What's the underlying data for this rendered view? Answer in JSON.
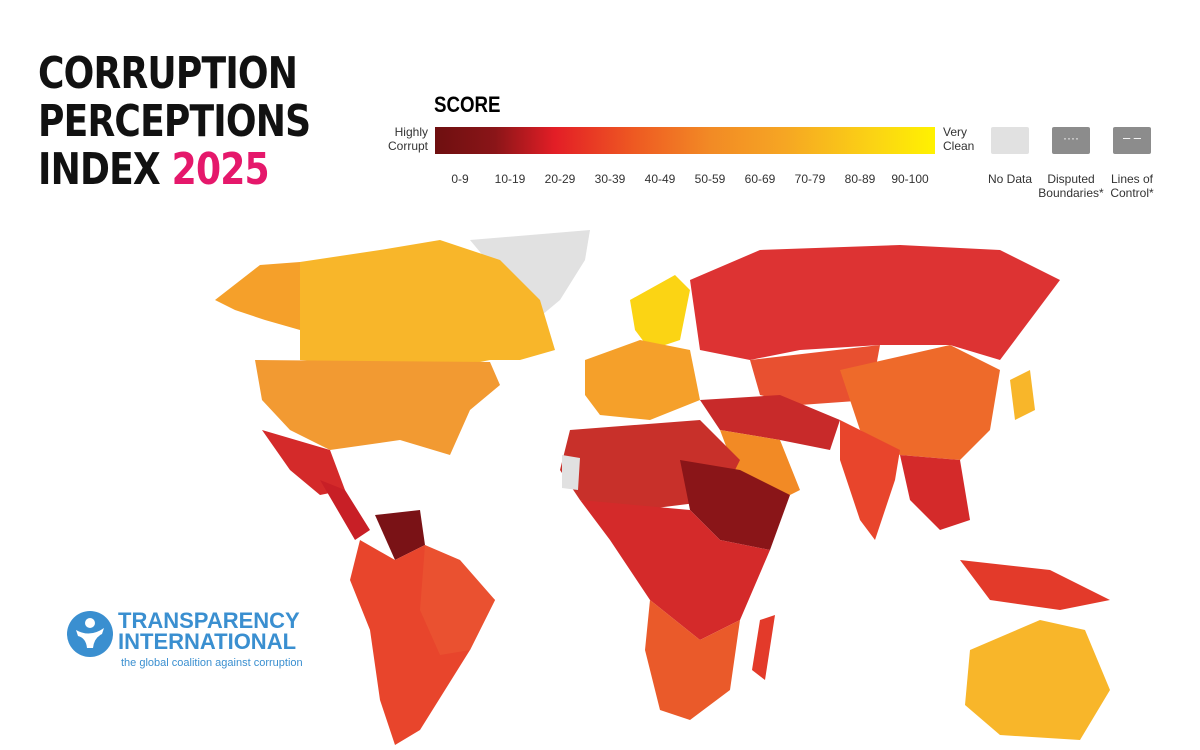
{
  "title": {
    "line1": "CORRUPTION",
    "line2": "PERCEPTIONS",
    "line3": "INDEX",
    "year": "2025"
  },
  "legend": {
    "heading": "SCORE",
    "low_label": "Highly Corrupt",
    "high_label": "Very Clean",
    "bins": [
      "0-9",
      "10-19",
      "20-29",
      "30-39",
      "40-49",
      "50-59",
      "60-69",
      "70-79",
      "80-89",
      "90-100"
    ],
    "colors": [
      "#6e0f10",
      "#8a1518",
      "#c81f26",
      "#e5332a",
      "#ee5a22",
      "#f28a25",
      "#f5a02a",
      "#f8b62a",
      "#fbd414",
      "#fff200"
    ],
    "no_data": {
      "label": "No Data",
      "color": "#e1e1e1"
    },
    "disputed": {
      "label": "Disputed Boundaries*",
      "color": "#8c8c8c"
    },
    "lines_of_control": {
      "label": "Lines of Control*",
      "color": "#8c8c8c"
    }
  },
  "logo": {
    "name": "TRANSPARENCY INTERNATIONAL",
    "tagline": "the global coalition against corruption"
  }
}
